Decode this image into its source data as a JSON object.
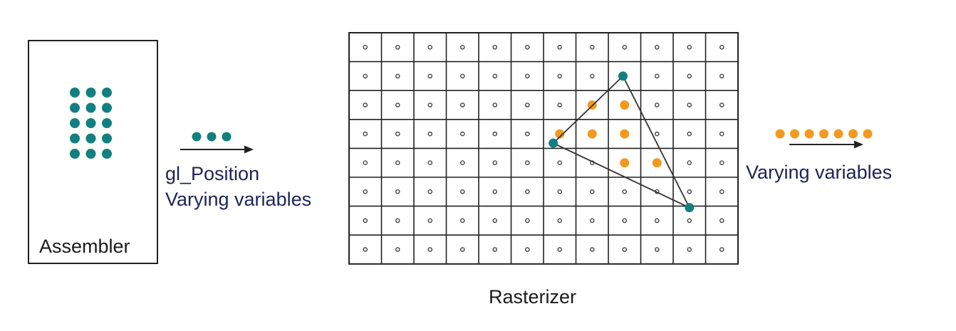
{
  "labels": {
    "assembler": "Assembler",
    "gl_position": "gl_Position",
    "varying_in": "Varying variables",
    "rasterizer": "Rasterizer",
    "varying_out": "Varying variables"
  },
  "colors": {
    "vertex": "#12807f",
    "fragment": "#f29a1f",
    "text_primary": "#1d2356",
    "line": "#333333"
  },
  "grid": {
    "columns": 12,
    "rows": 8
  },
  "vertex_cells": [
    [
      7.95,
      1.0
    ],
    [
      5.8,
      3.32
    ],
    [
      10.0,
      5.55
    ]
  ],
  "covered_cells": [
    [
      7,
      2
    ],
    [
      8,
      2
    ],
    [
      6,
      3
    ],
    [
      7,
      3
    ],
    [
      8,
      3
    ],
    [
      8,
      4
    ],
    [
      9,
      4
    ]
  ],
  "assembler_points": {
    "columns": 3,
    "rows": 5
  },
  "incoming_points": 3,
  "outgoing_points": 7
}
